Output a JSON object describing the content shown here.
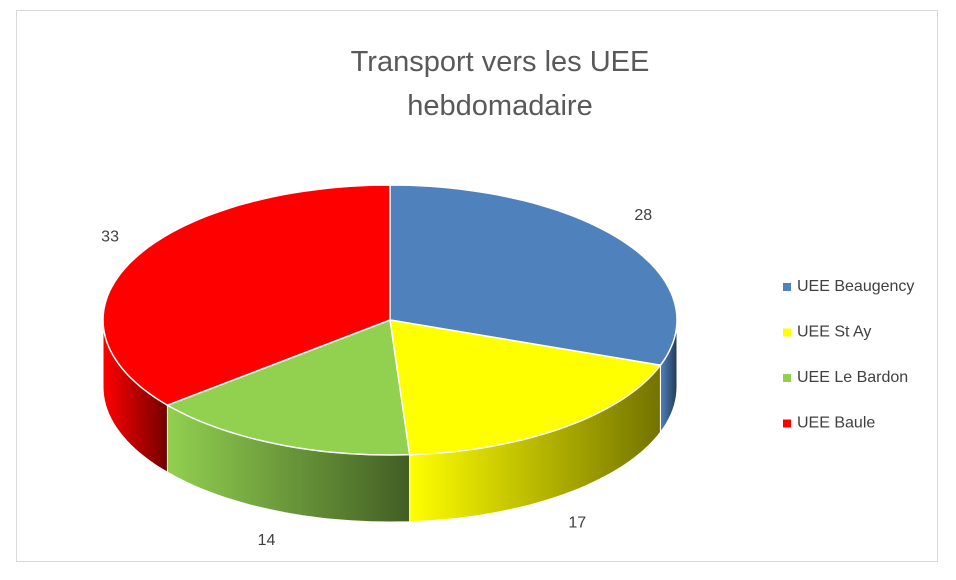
{
  "chart_data": {
    "type": "pie",
    "title": "Transport vers les UEE hebdomadaire",
    "categories": [
      "UEE Beaugency",
      "UEE St Ay",
      "UEE Le Bardon",
      "UEE Baule"
    ],
    "values": [
      28,
      17,
      14,
      33
    ],
    "colors": [
      "#4f81bd",
      "#ffff00",
      "#92d050",
      "#ff0000"
    ],
    "legend": "right"
  }
}
